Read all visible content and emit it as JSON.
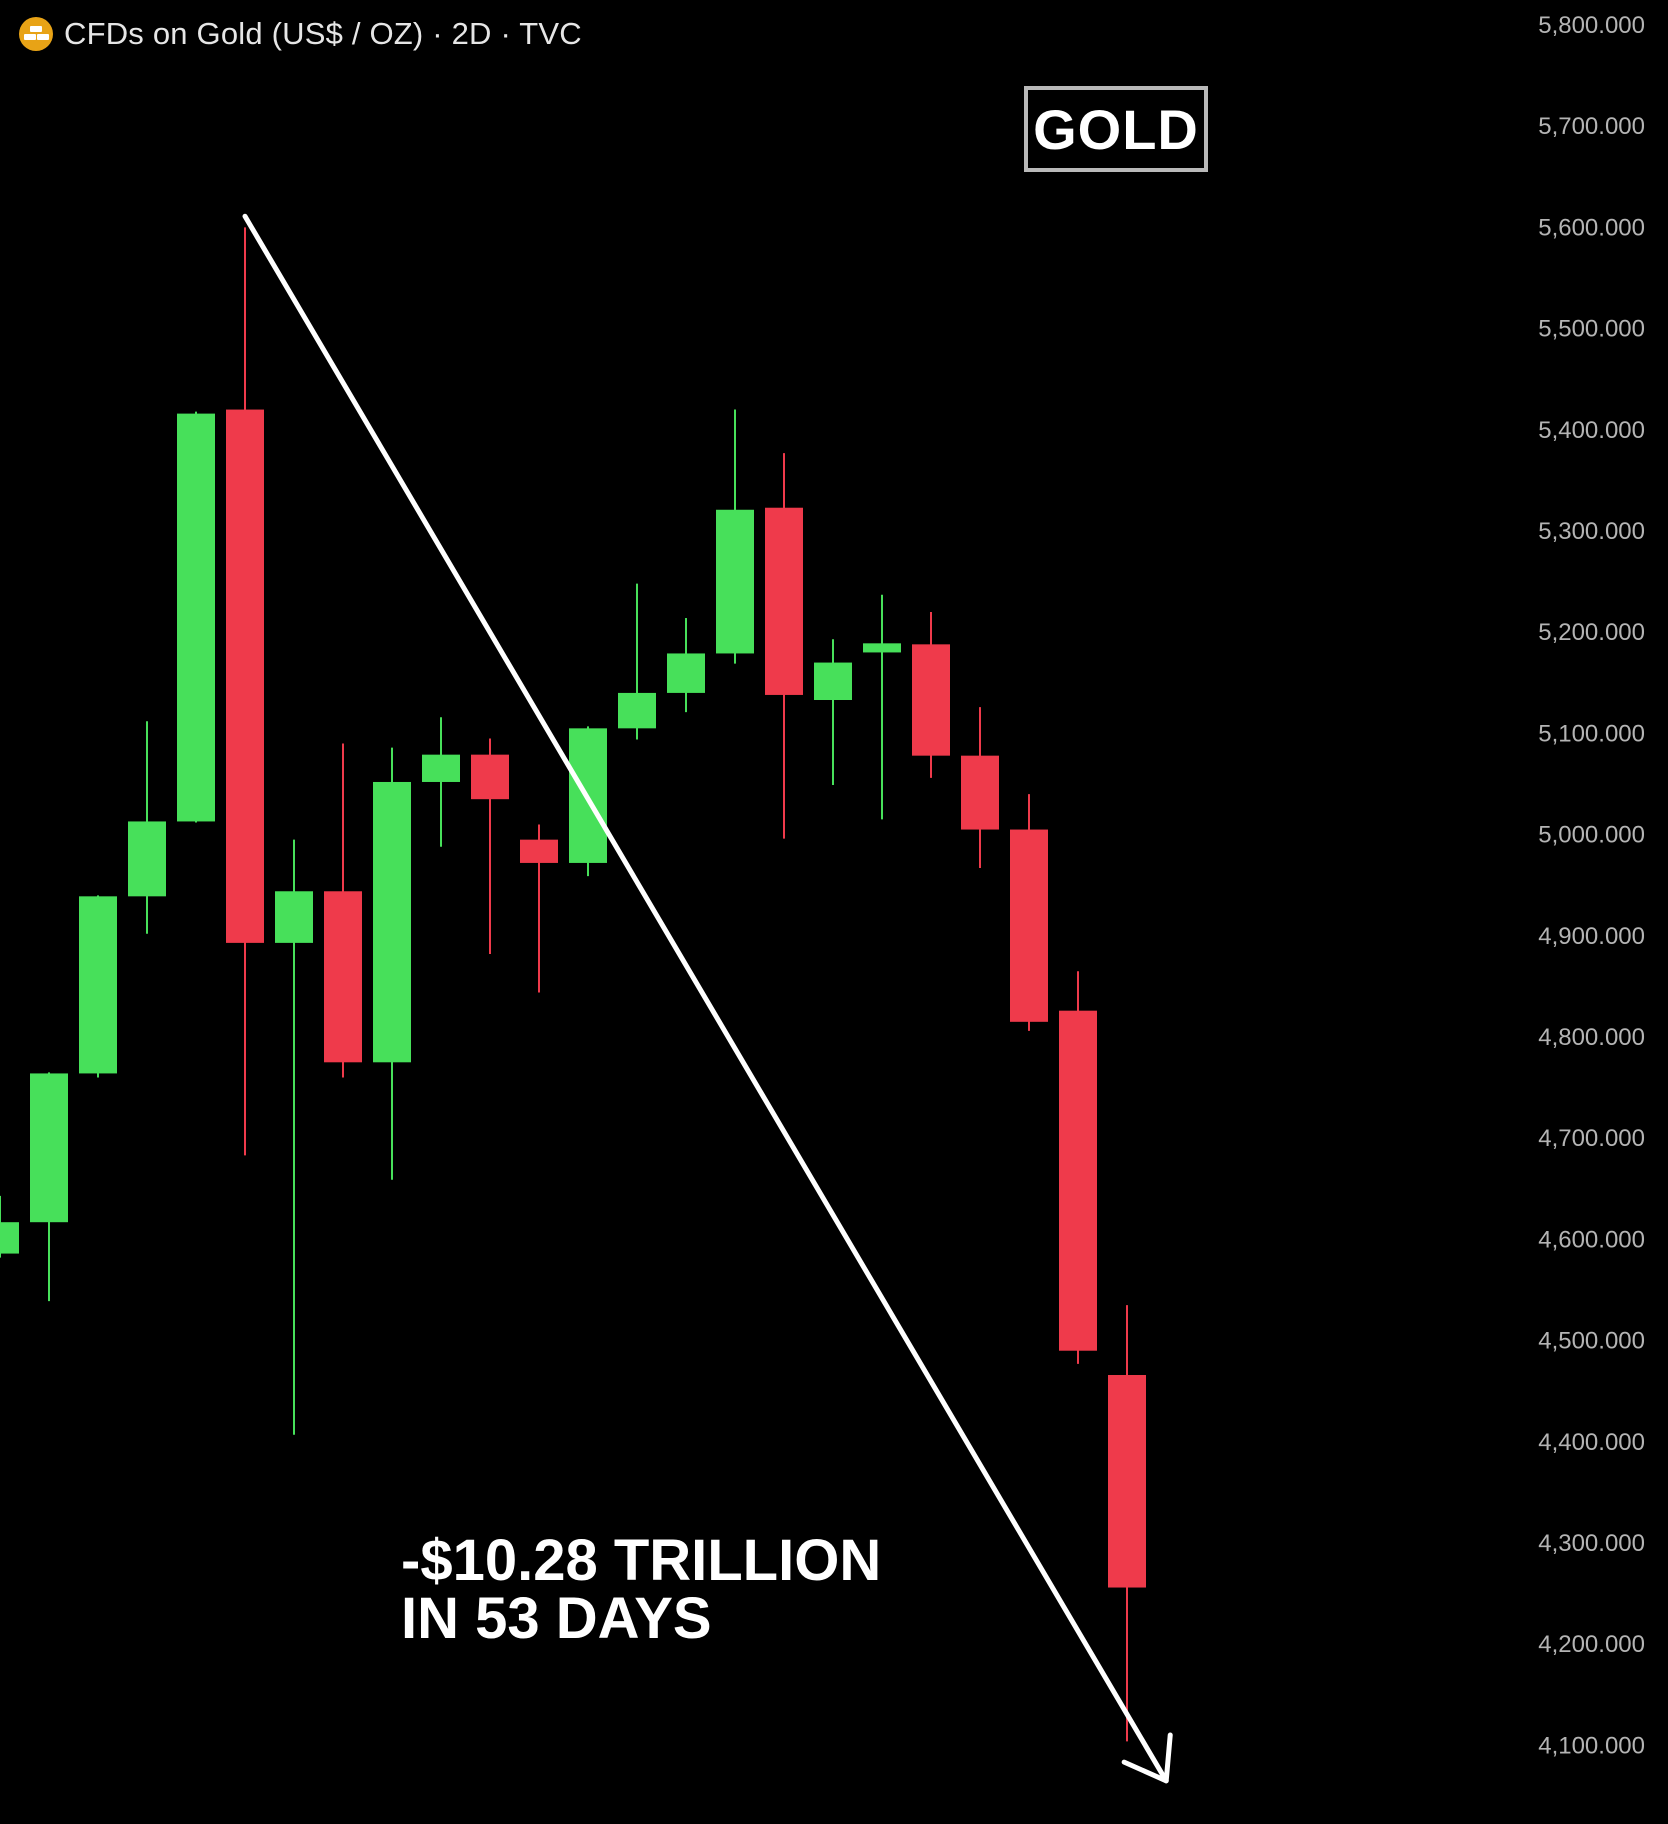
{
  "header": {
    "title": "CFDs on Gold (US$ / OZ) · 2D · TVC",
    "icon": "gold-bars-icon",
    "icon_color": "#e8a316"
  },
  "badge": {
    "label": "GOLD"
  },
  "annotation": {
    "line1": "-$10.28 TRILLION",
    "line2": "IN 53 DAYS"
  },
  "colors": {
    "background": "#000000",
    "up": "#47e05a",
    "down": "#ef3a4b",
    "axis_text": "#b4b4b4",
    "trend_arrow": "#ffffff"
  },
  "chart_data": {
    "type": "candlestick",
    "timeframe": "2D",
    "y_axis": {
      "position": "right",
      "ylim": [
        4050,
        5840
      ],
      "ticks": [
        5800,
        5700,
        5600,
        5500,
        5400,
        5300,
        5200,
        5100,
        5000,
        4900,
        4800,
        4700,
        4600,
        4500,
        4400,
        4300,
        4200,
        4100
      ],
      "tick_labels": [
        "5,800.000",
        "5,700.000",
        "5,600.000",
        "5,500.000",
        "5,400.000",
        "5,300.000",
        "5,200.000",
        "5,100.000",
        "5,000.000",
        "4,900.000",
        "4,800.000",
        "4,700.000",
        "4,600.000",
        "4,500.000",
        "4,400.000",
        "4,300.000",
        "4,200.000",
        "4,100.000"
      ]
    },
    "grid": false,
    "candles": [
      {
        "open": 4586,
        "high": 4643,
        "low": 4582,
        "close": 4617
      },
      {
        "open": 4617,
        "high": 4765,
        "low": 4539,
        "close": 4764
      },
      {
        "open": 4764,
        "high": 4940,
        "low": 4760,
        "close": 4939
      },
      {
        "open": 4939,
        "high": 5112,
        "low": 4902,
        "close": 5013
      },
      {
        "open": 5013,
        "high": 5418,
        "low": 5012,
        "close": 5416
      },
      {
        "open": 5420,
        "high": 5600,
        "low": 4683,
        "close": 4893
      },
      {
        "open": 4893,
        "high": 4995,
        "low": 4407,
        "close": 4944
      },
      {
        "open": 4944,
        "high": 5090,
        "low": 4760,
        "close": 4775
      },
      {
        "open": 4775,
        "high": 5086,
        "low": 4659,
        "close": 5052
      },
      {
        "open": 5052,
        "high": 5116,
        "low": 4988,
        "close": 5079
      },
      {
        "open": 5079,
        "high": 5095,
        "low": 4882,
        "close": 5035
      },
      {
        "open": 4995,
        "high": 5010,
        "low": 4844,
        "close": 4972
      },
      {
        "open": 4972,
        "high": 5107,
        "low": 4959,
        "close": 5105
      },
      {
        "open": 5105,
        "high": 5248,
        "low": 5094,
        "close": 5140
      },
      {
        "open": 5140,
        "high": 5214,
        "low": 5121,
        "close": 5179
      },
      {
        "open": 5179,
        "high": 5420,
        "low": 5169,
        "close": 5321
      },
      {
        "open": 5323,
        "high": 5377,
        "low": 4996,
        "close": 5138
      },
      {
        "open": 5133,
        "high": 5193,
        "low": 5049,
        "close": 5170
      },
      {
        "open": 5180,
        "high": 5237,
        "low": 5015,
        "close": 5189
      },
      {
        "open": 5188,
        "high": 5220,
        "low": 5056,
        "close": 5078
      },
      {
        "open": 5078,
        "high": 5126,
        "low": 4967,
        "close": 5005
      },
      {
        "open": 5005,
        "high": 5040,
        "low": 4806,
        "close": 4815
      },
      {
        "open": 4826,
        "high": 4865,
        "low": 4477,
        "close": 4490
      },
      {
        "open": 4466,
        "high": 4535,
        "low": 4104,
        "close": 4256
      }
    ],
    "trend_arrow": {
      "from_candle": 5,
      "from_price": 5611,
      "to_candle": 23.8,
      "to_price": 4065
    }
  }
}
